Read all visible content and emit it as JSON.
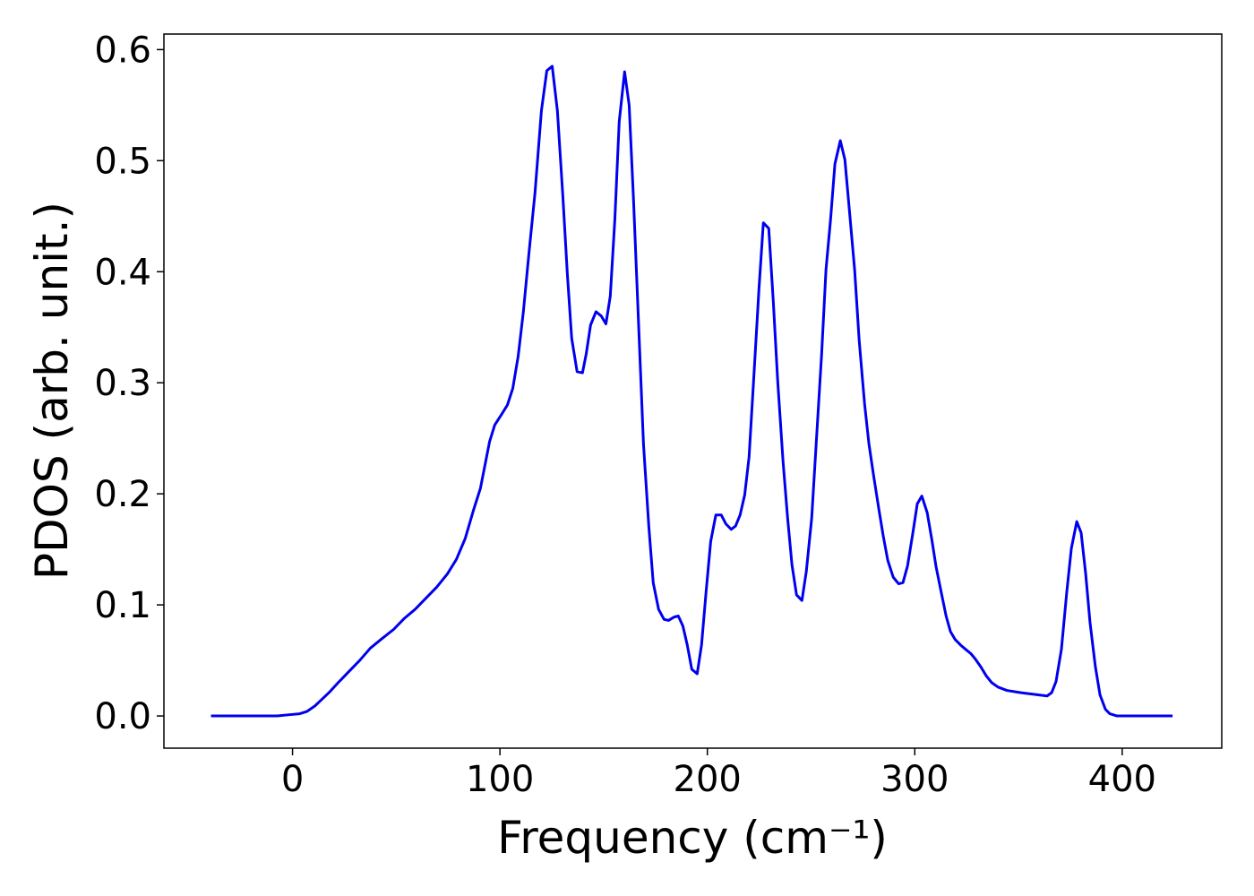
{
  "chart_data": {
    "type": "line",
    "xlabel": "Frequency (cm⁻¹)",
    "ylabel": "PDOS (arb. unit.)",
    "xlim": [
      -62,
      448
    ],
    "ylim": [
      -0.029,
      0.614
    ],
    "xticks": [
      0,
      100,
      200,
      300,
      400
    ],
    "yticks": [
      {
        "value": 0,
        "label": "0.0"
      },
      0.1,
      0.2,
      0.3,
      0.4,
      0.5,
      0.6
    ],
    "grid": false,
    "series": [
      {
        "name": "PDOS",
        "color": "#0000ee",
        "x": [
          -39.3,
          -7.3,
          -2.2,
          3.5,
          6.9,
          10.8,
          14.2,
          18.1,
          22,
          27.2,
          32.4,
          37.5,
          42.7,
          48.8,
          54,
          59.1,
          64.3,
          69.5,
          74.7,
          79,
          83.3,
          87.2,
          90.6,
          95,
          97.5,
          100.6,
          103.6,
          106.2,
          108.8,
          111.3,
          113.9,
          116.9,
          120,
          122.6,
          125.2,
          127.7,
          130.3,
          132.5,
          134.6,
          137.2,
          139.8,
          141.6,
          143.7,
          146.3,
          148.9,
          151.1,
          153.2,
          155.4,
          157.5,
          160.1,
          162.3,
          164.4,
          167,
          169.2,
          171.8,
          173.9,
          176.5,
          179.1,
          181.3,
          183.9,
          186,
          188.2,
          190.3,
          192.5,
          195.1,
          197.2,
          199.4,
          201.6,
          204.1,
          206.7,
          208.9,
          211.5,
          213.6,
          215.8,
          218,
          220.1,
          222.3,
          224.9,
          227,
          229.6,
          231.8,
          233.9,
          236.5,
          238.7,
          240.8,
          243,
          245.6,
          247.7,
          250.3,
          252.5,
          255.1,
          257.2,
          259.4,
          261.5,
          264.1,
          266.3,
          268.4,
          271,
          273.2,
          275.8,
          277.9,
          280.1,
          282.7,
          284.8,
          287,
          289.6,
          292.2,
          294.3,
          296.5,
          299.1,
          301.2,
          303.4,
          306,
          308.2,
          310.3,
          312.9,
          315.1,
          317.2,
          319.4,
          322,
          324.5,
          327.1,
          329.3,
          331.9,
          334.5,
          337.1,
          340.1,
          344.4,
          350.9,
          359.5,
          363.8,
          366,
          368.1,
          370.7,
          373.3,
          375.5,
          378.1,
          380.2,
          382.4,
          384.5,
          387.1,
          389.3,
          391.9,
          394,
          397.5,
          424.3
        ],
        "values": [
          0,
          0,
          0.001,
          0.002,
          0.004,
          0.009,
          0.015,
          0.022,
          0.03,
          0.04,
          0.05,
          0.061,
          0.069,
          0.078,
          0.088,
          0.096,
          0.106,
          0.116,
          0.128,
          0.141,
          0.16,
          0.185,
          0.205,
          0.247,
          0.262,
          0.271,
          0.28,
          0.295,
          0.324,
          0.364,
          0.415,
          0.471,
          0.545,
          0.581,
          0.585,
          0.545,
          0.469,
          0.398,
          0.34,
          0.31,
          0.309,
          0.326,
          0.352,
          0.364,
          0.36,
          0.353,
          0.378,
          0.447,
          0.535,
          0.58,
          0.55,
          0.465,
          0.346,
          0.245,
          0.17,
          0.12,
          0.096,
          0.087,
          0.086,
          0.089,
          0.09,
          0.081,
          0.064,
          0.042,
          0.038,
          0.064,
          0.112,
          0.157,
          0.181,
          0.181,
          0.173,
          0.168,
          0.171,
          0.181,
          0.199,
          0.233,
          0.302,
          0.385,
          0.444,
          0.439,
          0.373,
          0.302,
          0.229,
          0.178,
          0.136,
          0.109,
          0.104,
          0.13,
          0.178,
          0.246,
          0.326,
          0.402,
          0.447,
          0.497,
          0.518,
          0.501,
          0.457,
          0.402,
          0.338,
          0.281,
          0.245,
          0.217,
          0.186,
          0.162,
          0.14,
          0.125,
          0.119,
          0.12,
          0.135,
          0.165,
          0.191,
          0.198,
          0.183,
          0.159,
          0.134,
          0.11,
          0.09,
          0.076,
          0.069,
          0.064,
          0.06,
          0.056,
          0.051,
          0.044,
          0.036,
          0.03,
          0.026,
          0.023,
          0.021,
          0.019,
          0.018,
          0.021,
          0.031,
          0.06,
          0.112,
          0.151,
          0.175,
          0.165,
          0.128,
          0.084,
          0.044,
          0.019,
          0.006,
          0.002,
          0,
          0
        ]
      }
    ]
  }
}
